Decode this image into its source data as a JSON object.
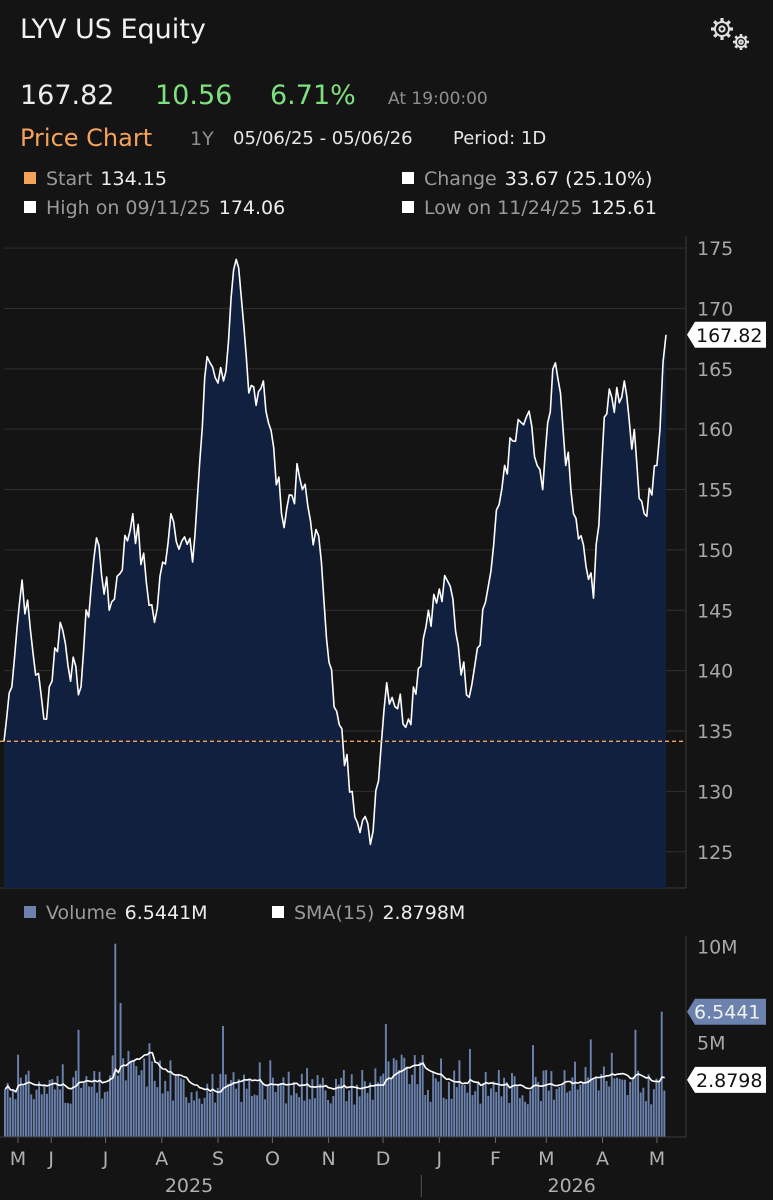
{
  "header": {
    "title": "LYV US Equity",
    "settings_icon": "gears-icon"
  },
  "quote": {
    "price": "167.82",
    "change": "10.56",
    "change_pct": "6.71%",
    "time": "At 19:00:00",
    "up_color": "#7ee07e"
  },
  "price_chart": {
    "title": "Price Chart",
    "range": "1Y",
    "dates": "05/06/25 - 05/06/26",
    "period": "Period: 1D",
    "legend": [
      {
        "label": "Start",
        "value": "134.15",
        "color": "#f6a35a"
      },
      {
        "label": "Change",
        "value": "33.67 (25.10%)",
        "color": "#ffffff"
      },
      {
        "label": "High on 09/11/25",
        "value": "174.06",
        "color": "#ffffff"
      },
      {
        "label": "Low on 11/24/25",
        "value": "125.61",
        "color": "#ffffff"
      }
    ],
    "last_price_label": "167.82"
  },
  "volume_chart": {
    "legend": [
      {
        "label": "Volume",
        "value": "6.5441M",
        "color": "#6a82ad"
      },
      {
        "label": "SMA(15)",
        "value": "2.8798M",
        "color": "#ffffff"
      }
    ],
    "last_volume_label": "6.5441",
    "last_sma_label": "2.8798"
  },
  "chart_data": [
    {
      "type": "area",
      "ylim": [
        122,
        176
      ],
      "y_ticks": [
        125,
        130,
        135,
        140,
        145,
        150,
        155,
        160,
        165,
        170,
        175
      ],
      "start_reference": 134.15,
      "area_color": "#11203f",
      "series": [
        {
          "x": [
            "2025-05-06",
            "2025-05-16",
            "2025-05-28",
            "2025-06-06",
            "2025-06-16",
            "2025-06-26",
            "2025-07-03",
            "2025-07-16",
            "2025-07-28",
            "2025-08-06",
            "2025-08-18",
            "2025-08-26",
            "2025-09-04",
            "2025-09-11",
            "2025-09-18",
            "2025-09-26",
            "2025-10-06",
            "2025-10-16",
            "2025-10-28",
            "2025-11-04",
            "2025-11-14",
            "2025-11-24",
            "2025-12-03",
            "2025-12-15",
            "2025-12-26",
            "2026-01-07",
            "2026-01-16",
            "2026-01-28",
            "2026-02-06",
            "2026-02-18",
            "2026-02-27",
            "2026-03-06",
            "2026-03-16",
            "2026-03-27",
            "2026-04-02",
            "2026-04-13",
            "2026-04-24",
            "2026-05-01",
            "2026-05-06"
          ],
          "values": [
            134.15,
            147.5,
            136.0,
            144.0,
            138.0,
            151.0,
            145.0,
            153.0,
            144.0,
            153.0,
            149.0,
            166.0,
            164.0,
            174.06,
            163.0,
            164.0,
            153.0,
            156.0,
            149.0,
            137.0,
            130.0,
            125.61,
            139.0,
            136.0,
            145.0,
            147.0,
            138.0,
            147.0,
            157.0,
            161.0,
            155.0,
            165.5,
            153.0,
            146.0,
            161.0,
            164.0,
            153.0,
            157.0,
            167.82
          ]
        }
      ]
    },
    {
      "type": "bar",
      "ylim": [
        0,
        10.5
      ],
      "y_ticks": [
        "10M",
        "5M"
      ],
      "x_tick_labels": [
        "M",
        "J",
        "J",
        "A",
        "S",
        "O",
        "N",
        "D",
        "J",
        "F",
        "M",
        "A",
        "M"
      ],
      "year_labels": [
        "2025",
        "2026"
      ],
      "bar_color": "#6a82ad",
      "series": [
        {
          "name": "Volume",
          "last": 6.5441
        },
        {
          "name": "SMA(15)",
          "last": 2.8798
        }
      ]
    }
  ]
}
